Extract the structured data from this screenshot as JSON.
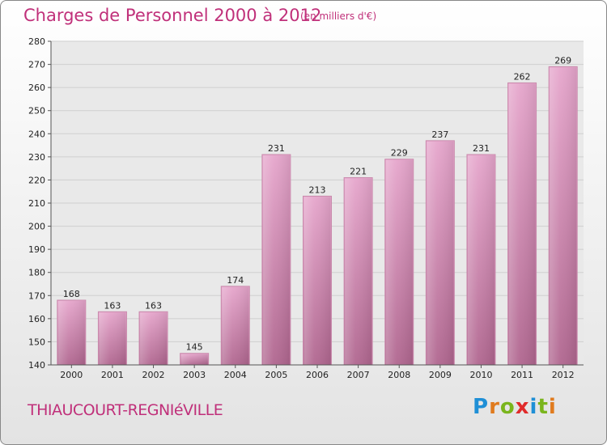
{
  "header": {
    "title": "Charges de Personnel 2000 à 2012",
    "subtitle": "(en milliers d'€)"
  },
  "footer": {
    "commune": "THIAUCOURT-REGNIéVILLE",
    "logo": {
      "letters": [
        "P",
        "r",
        "o",
        "x",
        "i",
        "t",
        "i"
      ],
      "colors": [
        "#1f8fd6",
        "#e07b1e",
        "#7ab51d",
        "#e02b2b",
        "#1f8fd6",
        "#7ab51d",
        "#e07b1e"
      ]
    }
  },
  "colors": {
    "title": "#c0307a",
    "bar_top": "#e6a6cc",
    "bar_bottom": "#b0668f",
    "plot_background": "#e9e9e9",
    "grid": "#cfcfcf"
  },
  "chart_data": {
    "type": "bar",
    "categories": [
      "2000",
      "2001",
      "2002",
      "2003",
      "2004",
      "2005",
      "2006",
      "2007",
      "2008",
      "2009",
      "2010",
      "2011",
      "2012"
    ],
    "values": [
      168,
      163,
      163,
      145,
      174,
      231,
      213,
      221,
      229,
      237,
      231,
      262,
      269
    ],
    "yticks": [
      140,
      150,
      160,
      170,
      180,
      190,
      200,
      210,
      220,
      230,
      240,
      250,
      260,
      270,
      280
    ],
    "ylim": [
      140,
      280
    ],
    "grid": true,
    "legend": "none"
  }
}
